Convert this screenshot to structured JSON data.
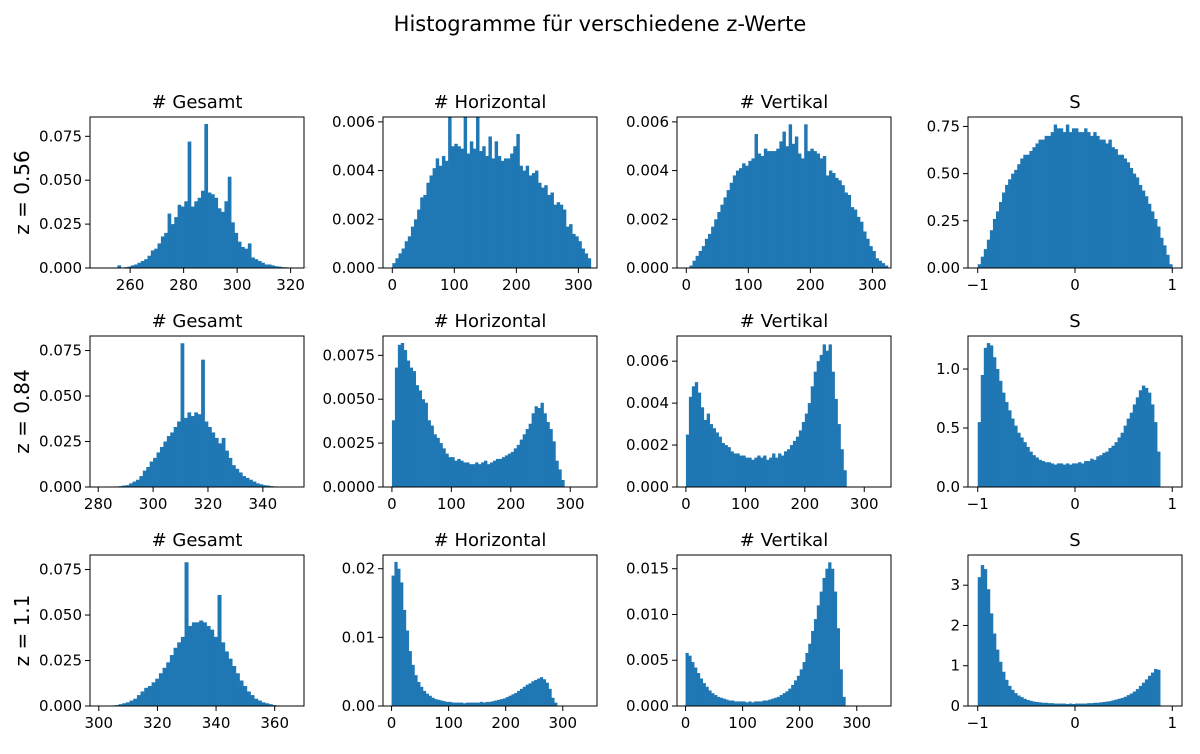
{
  "suptitle": "Histogramme für verschiedene z-Werte",
  "colors": {
    "bar": "#1f77b4",
    "axis": "#000000",
    "background": "#ffffff"
  },
  "chart_data": [
    {
      "type": "bar",
      "row": 0,
      "col": 0,
      "row_label": "z = 0.56",
      "title": "# Gesamt",
      "xlim": [
        245,
        325
      ],
      "ylim": [
        0,
        0.086
      ],
      "xticks": [
        260,
        280,
        300,
        320
      ],
      "yticks": [
        0,
        0.025,
        0.05,
        0.075
      ],
      "xticklabels": [
        "260",
        "280",
        "300",
        "320"
      ],
      "yticklabels": [
        "0.000",
        "0.025",
        "0.050",
        "0.075"
      ],
      "bin_start": 249,
      "bin_width": 1.25,
      "values": [
        0.0002,
        0.0002,
        0.0003,
        0.0003,
        0.0002,
        0.0015,
        0.0003,
        0.0005,
        0.0008,
        0.0015,
        0.002,
        0.003,
        0.004,
        0.005,
        0.007,
        0.01,
        0.011,
        0.014,
        0.018,
        0.02,
        0.031,
        0.025,
        0.029,
        0.036,
        0.035,
        0.038,
        0.072,
        0.035,
        0.038,
        0.04,
        0.044,
        0.082,
        0.043,
        0.042,
        0.04,
        0.034,
        0.032,
        0.038,
        0.052,
        0.026,
        0.02,
        0.015,
        0.012,
        0.011,
        0.014,
        0.006,
        0.005,
        0.004,
        0.003,
        0.002,
        0.002,
        0.0015,
        0.001,
        0.0008,
        0.0005,
        0.0004,
        0.0003,
        0.0002,
        0.0002,
        0.0002,
        0.0001,
        0.0001
      ]
    },
    {
      "type": "bar",
      "row": 0,
      "col": 1,
      "title": "# Horizontal",
      "xlim": [
        -15,
        330
      ],
      "ylim": [
        0,
        0.0062
      ],
      "xticks": [
        0,
        100,
        200,
        300
      ],
      "yticks": [
        0,
        0.002,
        0.004,
        0.006
      ],
      "xticklabels": [
        "0",
        "100",
        "200",
        "300"
      ],
      "yticklabels": [
        "0.000",
        "0.002",
        "0.004",
        "0.006"
      ],
      "bin_start": 0,
      "bin_width": 5,
      "values": [
        0.0002,
        0.0004,
        0.0006,
        0.0008,
        0.0011,
        0.0013,
        0.0017,
        0.002,
        0.0024,
        0.0029,
        0.003,
        0.0035,
        0.0038,
        0.0041,
        0.0045,
        0.0042,
        0.0046,
        0.0044,
        0.0063,
        0.005,
        0.0051,
        0.005,
        0.0049,
        0.0063,
        0.0047,
        0.0052,
        0.0049,
        0.0063,
        0.0048,
        0.005,
        0.0046,
        0.0054,
        0.0045,
        0.0052,
        0.0046,
        0.0044,
        0.0045,
        0.0045,
        0.0047,
        0.005,
        0.0055,
        0.0042,
        0.004,
        0.0042,
        0.0038,
        0.0039,
        0.004,
        0.0035,
        0.0033,
        0.0034,
        0.003,
        0.0031,
        0.0026,
        0.0027,
        0.0026,
        0.0024,
        0.0017,
        0.0018,
        0.0014,
        0.0013,
        0.0011,
        0.0008,
        0.0006,
        0.0004
      ]
    },
    {
      "type": "bar",
      "row": 0,
      "col": 2,
      "title": "# Vertikal",
      "xlim": [
        -15,
        330
      ],
      "ylim": [
        0,
        0.0062
      ],
      "xticks": [
        0,
        100,
        200,
        300
      ],
      "yticks": [
        0,
        0.002,
        0.004,
        0.006
      ],
      "xticklabels": [
        "0",
        "100",
        "200",
        "300"
      ],
      "yticklabels": [
        "0.000",
        "0.002",
        "0.004",
        "0.006"
      ],
      "bin_start": 5,
      "bin_width": 5,
      "values": [
        0.0001,
        0.0003,
        0.0005,
        0.0007,
        0.0009,
        0.0012,
        0.0014,
        0.0017,
        0.002,
        0.0023,
        0.0026,
        0.0029,
        0.0032,
        0.0035,
        0.0038,
        0.004,
        0.0041,
        0.0043,
        0.0042,
        0.0044,
        0.0045,
        0.0055,
        0.0047,
        0.0046,
        0.0049,
        0.0048,
        0.0048,
        0.0048,
        0.0049,
        0.0052,
        0.0056,
        0.005,
        0.0059,
        0.0051,
        0.0054,
        0.0047,
        0.0045,
        0.0059,
        0.0048,
        0.0049,
        0.0048,
        0.0047,
        0.0045,
        0.0046,
        0.0038,
        0.004,
        0.0039,
        0.0037,
        0.0036,
        0.0034,
        0.0031,
        0.003,
        0.0025,
        0.0024,
        0.0021,
        0.0019,
        0.0015,
        0.0012,
        0.0009,
        0.0007,
        0.0004,
        0.0003,
        0.0002,
        0.0001
      ]
    },
    {
      "type": "bar",
      "row": 0,
      "col": 3,
      "title": "S",
      "xlim": [
        -1.1,
        1.1
      ],
      "ylim": [
        0,
        0.8
      ],
      "xticks": [
        -1,
        0,
        1
      ],
      "yticks": [
        0,
        0.25,
        0.5,
        0.75
      ],
      "xticklabels": [
        "−1",
        "0",
        "1"
      ],
      "yticklabels": [
        "0.00",
        "0.25",
        "0.50",
        "0.75"
      ],
      "bin_start": -1,
      "bin_width": 0.03125,
      "values": [
        0.02,
        0.06,
        0.1,
        0.15,
        0.2,
        0.26,
        0.3,
        0.35,
        0.4,
        0.44,
        0.47,
        0.5,
        0.52,
        0.55,
        0.58,
        0.6,
        0.6,
        0.62,
        0.64,
        0.66,
        0.68,
        0.68,
        0.7,
        0.7,
        0.72,
        0.76,
        0.74,
        0.74,
        0.72,
        0.76,
        0.72,
        0.74,
        0.74,
        0.72,
        0.72,
        0.74,
        0.72,
        0.7,
        0.72,
        0.7,
        0.68,
        0.68,
        0.66,
        0.68,
        0.64,
        0.63,
        0.6,
        0.6,
        0.58,
        0.56,
        0.53,
        0.5,
        0.48,
        0.44,
        0.41,
        0.38,
        0.34,
        0.3,
        0.26,
        0.22,
        0.16,
        0.12,
        0.07,
        0.02
      ]
    },
    {
      "type": "bar",
      "row": 1,
      "col": 0,
      "row_label": "z = 0.84",
      "title": "# Gesamt",
      "xlim": [
        277,
        355
      ],
      "ylim": [
        0,
        0.083
      ],
      "xticks": [
        280,
        300,
        320,
        340
      ],
      "yticks": [
        0,
        0.025,
        0.05,
        0.075
      ],
      "xticklabels": [
        "280",
        "300",
        "320",
        "340"
      ],
      "yticklabels": [
        "0.000",
        "0.025",
        "0.050",
        "0.075"
      ],
      "bin_start": 285,
      "bin_width": 1.25,
      "values": [
        0.0002,
        0.0003,
        0.0005,
        0.0008,
        0.001,
        0.002,
        0.003,
        0.004,
        0.006,
        0.009,
        0.011,
        0.014,
        0.016,
        0.019,
        0.022,
        0.025,
        0.028,
        0.03,
        0.033,
        0.036,
        0.079,
        0.038,
        0.041,
        0.039,
        0.041,
        0.04,
        0.07,
        0.036,
        0.033,
        0.03,
        0.027,
        0.024,
        0.027,
        0.02,
        0.016,
        0.012,
        0.01,
        0.008,
        0.006,
        0.005,
        0.004,
        0.003,
        0.002,
        0.0015,
        0.001,
        0.0008,
        0.0005,
        0.0003
      ]
    },
    {
      "type": "bar",
      "row": 1,
      "col": 1,
      "title": "# Horizontal",
      "xlim": [
        -15,
        345
      ],
      "ylim": [
        0,
        0.0086
      ],
      "xticks": [
        0,
        100,
        200,
        300
      ],
      "yticks": [
        0,
        0.0025,
        0.005,
        0.0075
      ],
      "xticklabels": [
        "0",
        "100",
        "200",
        "300"
      ],
      "yticklabels": [
        "0.0000",
        "0.0025",
        "0.0050",
        "0.0075"
      ],
      "bin_start": 0,
      "bin_width": 5,
      "values": [
        0.0038,
        0.0068,
        0.0081,
        0.0082,
        0.0078,
        0.0072,
        0.0068,
        0.0066,
        0.0058,
        0.0055,
        0.005,
        0.0048,
        0.0038,
        0.0035,
        0.003,
        0.0028,
        0.0025,
        0.0022,
        0.0019,
        0.0017,
        0.0017,
        0.0015,
        0.0016,
        0.0015,
        0.0014,
        0.0014,
        0.0013,
        0.0013,
        0.0014,
        0.0013,
        0.0014,
        0.0015,
        0.0013,
        0.0014,
        0.0015,
        0.0016,
        0.0016,
        0.0017,
        0.0018,
        0.0019,
        0.002,
        0.0022,
        0.0024,
        0.0027,
        0.003,
        0.0033,
        0.0036,
        0.0042,
        0.0046,
        0.0045,
        0.0048,
        0.0042,
        0.0037,
        0.0033,
        0.0026,
        0.0015,
        0.001,
        0.0004
      ]
    },
    {
      "type": "bar",
      "row": 1,
      "col": 2,
      "title": "# Vertikal",
      "xlim": [
        -15,
        345
      ],
      "ylim": [
        0,
        0.0072
      ],
      "xticks": [
        0,
        100,
        200,
        300
      ],
      "yticks": [
        0,
        0.002,
        0.004,
        0.006
      ],
      "xticklabels": [
        "0",
        "100",
        "200",
        "300"
      ],
      "yticklabels": [
        "0.000",
        "0.002",
        "0.004",
        "0.006"
      ],
      "bin_start": 0,
      "bin_width": 5,
      "values": [
        0.0025,
        0.0043,
        0.0048,
        0.005,
        0.0045,
        0.0038,
        0.0032,
        0.0035,
        0.003,
        0.0028,
        0.0026,
        0.0024,
        0.0021,
        0.002,
        0.0019,
        0.0017,
        0.0016,
        0.0016,
        0.0015,
        0.0015,
        0.0014,
        0.0014,
        0.0013,
        0.0014,
        0.0015,
        0.0014,
        0.0015,
        0.0013,
        0.0014,
        0.0016,
        0.0014,
        0.0016,
        0.0015,
        0.0017,
        0.0018,
        0.002,
        0.0022,
        0.0024,
        0.0027,
        0.0031,
        0.0035,
        0.004,
        0.0048,
        0.0055,
        0.006,
        0.0063,
        0.0068,
        0.0065,
        0.0068,
        0.0055,
        0.0042,
        0.003,
        0.0018,
        0.0008
      ]
    },
    {
      "type": "bar",
      "row": 1,
      "col": 3,
      "title": "S",
      "xlim": [
        -1.1,
        1.1
      ],
      "ylim": [
        0,
        1.28
      ],
      "xticks": [
        -1,
        0,
        1
      ],
      "yticks": [
        0,
        0.5,
        1.0
      ],
      "xticklabels": [
        "−1",
        "0",
        "1"
      ],
      "yticklabels": [
        "0.0",
        "0.5",
        "1.0"
      ],
      "bin_start": -1,
      "bin_width": 0.03125,
      "values": [
        0.55,
        0.95,
        1.18,
        1.22,
        1.2,
        1.1,
        1.0,
        0.9,
        0.8,
        0.72,
        0.65,
        0.58,
        0.52,
        0.46,
        0.42,
        0.38,
        0.34,
        0.3,
        0.27,
        0.25,
        0.23,
        0.22,
        0.21,
        0.21,
        0.2,
        0.19,
        0.2,
        0.2,
        0.19,
        0.2,
        0.19,
        0.2,
        0.2,
        0.21,
        0.2,
        0.22,
        0.22,
        0.24,
        0.23,
        0.26,
        0.27,
        0.29,
        0.3,
        0.33,
        0.35,
        0.38,
        0.42,
        0.46,
        0.52,
        0.58,
        0.63,
        0.7,
        0.76,
        0.82,
        0.86,
        0.84,
        0.8,
        0.7,
        0.55,
        0.3
      ]
    },
    {
      "type": "bar",
      "row": 2,
      "col": 0,
      "row_label": "z = 1.1",
      "title": "# Gesamt",
      "xlim": [
        297,
        370
      ],
      "ylim": [
        0,
        0.083
      ],
      "xticks": [
        300,
        320,
        340,
        360
      ],
      "yticks": [
        0,
        0.025,
        0.05,
        0.075
      ],
      "xticklabels": [
        "300",
        "320",
        "340",
        "360"
      ],
      "yticklabels": [
        "0.000",
        "0.025",
        "0.050",
        "0.075"
      ],
      "bin_start": 303,
      "bin_width": 1.25,
      "values": [
        0.0002,
        0.0003,
        0.0005,
        0.001,
        0.0015,
        0.002,
        0.003,
        0.004,
        0.006,
        0.008,
        0.01,
        0.011,
        0.013,
        0.015,
        0.018,
        0.021,
        0.024,
        0.028,
        0.032,
        0.035,
        0.038,
        0.079,
        0.044,
        0.046,
        0.046,
        0.047,
        0.046,
        0.044,
        0.042,
        0.038,
        0.061,
        0.035,
        0.03,
        0.026,
        0.022,
        0.018,
        0.014,
        0.011,
        0.008,
        0.006,
        0.004,
        0.003,
        0.002,
        0.0015,
        0.001,
        0.0005,
        0.0003,
        0.0002
      ]
    },
    {
      "type": "bar",
      "row": 2,
      "col": 1,
      "title": "# Horizontal",
      "xlim": [
        -15,
        360
      ],
      "ylim": [
        0,
        0.022
      ],
      "xticks": [
        0,
        100,
        200,
        300
      ],
      "yticks": [
        0,
        0.01,
        0.02
      ],
      "xticklabels": [
        "0",
        "100",
        "200",
        "300"
      ],
      "yticklabels": [
        "0.00",
        "0.01",
        "0.02"
      ],
      "bin_start": 0,
      "bin_width": 5,
      "values": [
        0.019,
        0.021,
        0.02,
        0.018,
        0.014,
        0.011,
        0.008,
        0.006,
        0.0045,
        0.0035,
        0.0028,
        0.0022,
        0.0018,
        0.0015,
        0.0012,
        0.001,
        0.0009,
        0.0008,
        0.0007,
        0.0006,
        0.0006,
        0.0005,
        0.0005,
        0.0005,
        0.0005,
        0.0004,
        0.0005,
        0.0005,
        0.0005,
        0.0005,
        0.0005,
        0.0006,
        0.0005,
        0.0006,
        0.0006,
        0.0007,
        0.0008,
        0.0009,
        0.001,
        0.0011,
        0.0013,
        0.0015,
        0.0017,
        0.0019,
        0.0022,
        0.0025,
        0.0028,
        0.0031,
        0.0033,
        0.0036,
        0.0038,
        0.004,
        0.0042,
        0.0039,
        0.0034,
        0.0025,
        0.0012,
        0.0005
      ]
    },
    {
      "type": "bar",
      "row": 2,
      "col": 2,
      "title": "# Vertikal",
      "xlim": [
        -15,
        360
      ],
      "ylim": [
        0,
        0.0165
      ],
      "xticks": [
        0,
        100,
        200,
        300
      ],
      "yticks": [
        0,
        0.005,
        0.01,
        0.015
      ],
      "xticklabels": [
        "0",
        "100",
        "200",
        "300"
      ],
      "yticklabels": [
        "0.000",
        "0.005",
        "0.010",
        "0.015"
      ],
      "bin_start": 0,
      "bin_width": 5,
      "values": [
        0.0058,
        0.0055,
        0.0048,
        0.0042,
        0.0036,
        0.003,
        0.0025,
        0.0021,
        0.0017,
        0.0014,
        0.0012,
        0.001,
        0.0009,
        0.0008,
        0.0007,
        0.0006,
        0.0006,
        0.0005,
        0.0005,
        0.0005,
        0.0005,
        0.0004,
        0.0005,
        0.0004,
        0.0005,
        0.0005,
        0.0005,
        0.0006,
        0.0006,
        0.0007,
        0.0008,
        0.0009,
        0.001,
        0.0012,
        0.0014,
        0.0016,
        0.0019,
        0.0023,
        0.0028,
        0.0033,
        0.004,
        0.0048,
        0.0058,
        0.0068,
        0.0082,
        0.0095,
        0.011,
        0.0125,
        0.014,
        0.015,
        0.0157,
        0.015,
        0.0125,
        0.0085,
        0.004,
        0.001
      ]
    },
    {
      "type": "bar",
      "row": 2,
      "col": 3,
      "title": "S",
      "xlim": [
        -1.1,
        1.1
      ],
      "ylim": [
        0,
        3.75
      ],
      "xticks": [
        -1,
        0,
        1
      ],
      "yticks": [
        0,
        1,
        2,
        3
      ],
      "xticklabels": [
        "−1",
        "0",
        "1"
      ],
      "yticklabels": [
        "0",
        "1",
        "2",
        "3"
      ],
      "bin_start": -1,
      "bin_width": 0.03125,
      "values": [
        3.2,
        3.5,
        3.4,
        2.9,
        2.3,
        1.8,
        1.4,
        1.1,
        0.85,
        0.65,
        0.5,
        0.4,
        0.32,
        0.26,
        0.22,
        0.18,
        0.15,
        0.13,
        0.11,
        0.1,
        0.09,
        0.08,
        0.08,
        0.07,
        0.07,
        0.06,
        0.06,
        0.06,
        0.06,
        0.05,
        0.06,
        0.05,
        0.06,
        0.06,
        0.06,
        0.06,
        0.07,
        0.07,
        0.08,
        0.08,
        0.09,
        0.1,
        0.11,
        0.12,
        0.14,
        0.16,
        0.18,
        0.2,
        0.23,
        0.27,
        0.31,
        0.36,
        0.42,
        0.5,
        0.58,
        0.66,
        0.75,
        0.83,
        0.92,
        0.9
      ]
    }
  ]
}
